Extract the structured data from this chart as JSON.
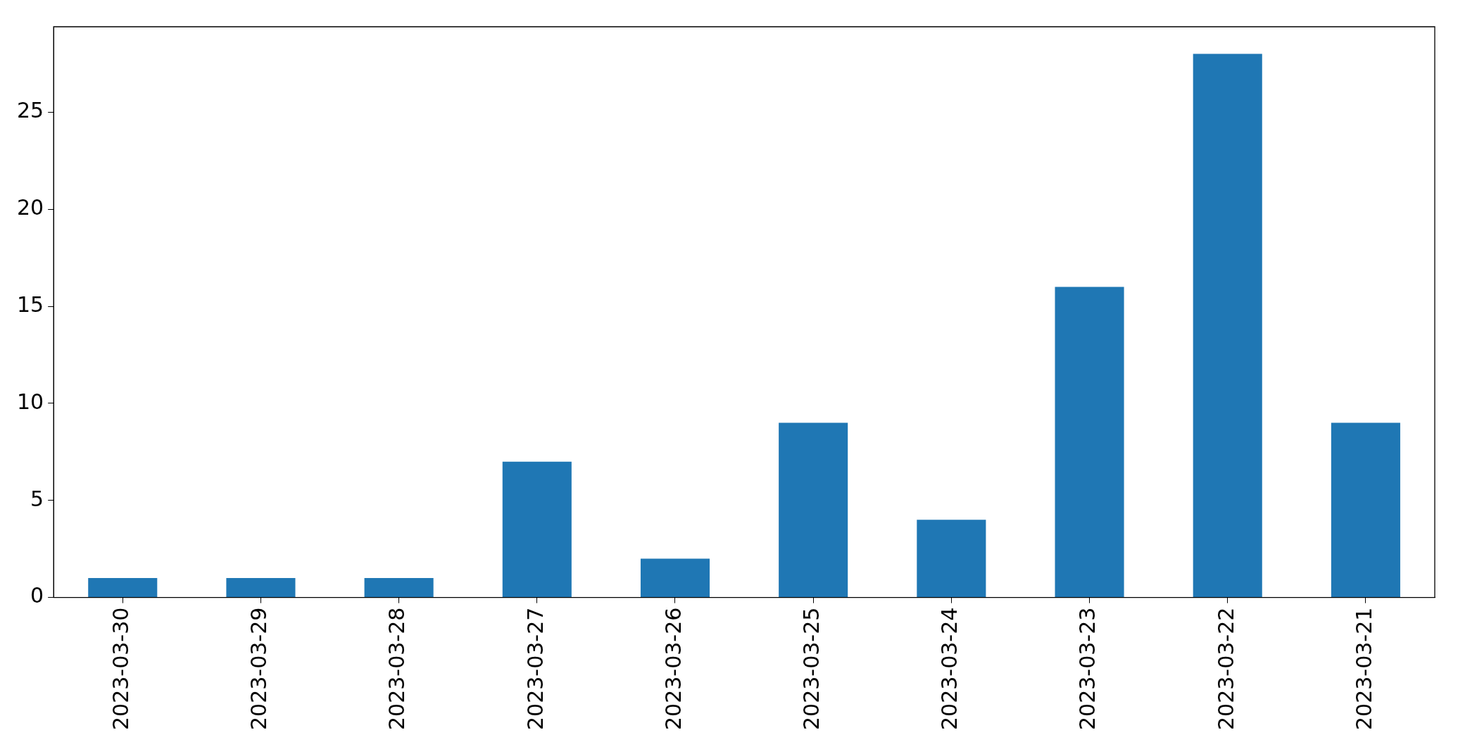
{
  "chart_data": {
    "type": "bar",
    "categories": [
      "2023-03-30",
      "2023-03-29",
      "2023-03-28",
      "2023-03-27",
      "2023-03-26",
      "2023-03-25",
      "2023-03-24",
      "2023-03-23",
      "2023-03-22",
      "2023-03-21"
    ],
    "values": [
      1,
      1,
      1,
      7,
      2,
      9,
      4,
      16,
      28,
      9
    ],
    "color": "#1f77b4",
    "ylim": [
      0,
      29.4
    ],
    "yticks": [
      0,
      5,
      10,
      15,
      20,
      25
    ],
    "grid": false,
    "legend": false
  }
}
